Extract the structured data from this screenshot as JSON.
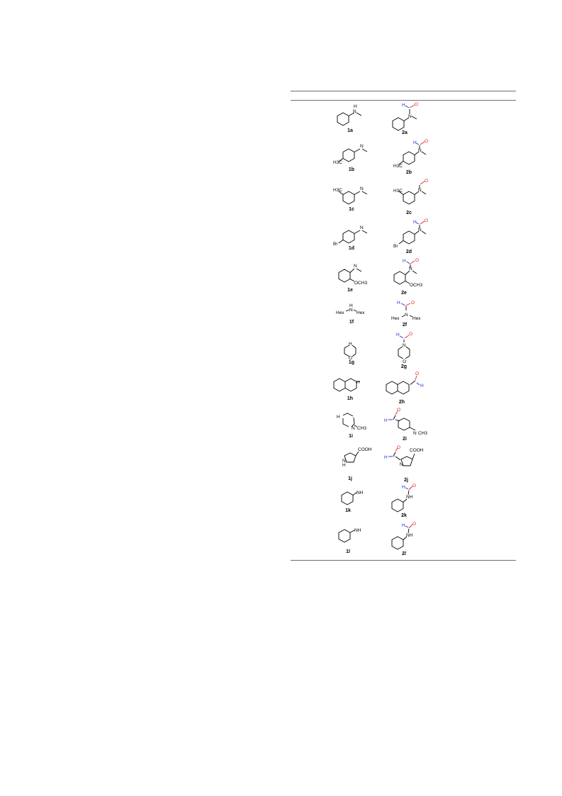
{
  "table": {
    "rows": [
      {
        "reactant": "1a",
        "product": "2a"
      },
      {
        "reactant": "1b",
        "product": "2b"
      },
      {
        "reactant": "1c",
        "product": "2c"
      },
      {
        "reactant": "1d",
        "product": "2d"
      },
      {
        "reactant": "1e",
        "product": "2e"
      },
      {
        "reactant": "1f",
        "product": "2f"
      },
      {
        "reactant": "1g",
        "product": "2g"
      },
      {
        "reactant": "1h",
        "product": "2h"
      },
      {
        "reactant": "1i",
        "product": "2i"
      },
      {
        "reactant": "1j",
        "product": "2j"
      },
      {
        "reactant": "1k",
        "product": "2k"
      },
      {
        "reactant": "1l",
        "product": "2l"
      }
    ]
  },
  "atoms": {
    "H": "H",
    "N": "N",
    "NH": "NH",
    "O": "O",
    "H3C": "H3C",
    "Br": "Br",
    "OCH3": "OCH3",
    "Hex": "Hex",
    "CH3": "CH3",
    "COOH": "COOH"
  }
}
